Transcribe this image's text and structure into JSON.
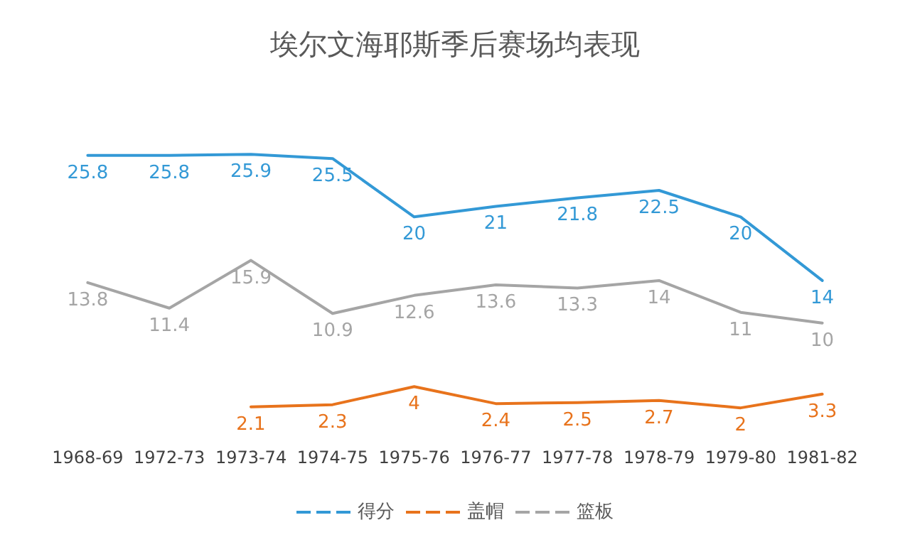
{
  "chart_data": {
    "type": "line",
    "title": "埃尔文海耶斯季后赛场均表现",
    "categories": [
      "1968-69",
      "1972-73",
      "1973-74",
      "1974-75",
      "1975-76",
      "1976-77",
      "1977-78",
      "1978-79",
      "1979-80",
      "1981-82"
    ],
    "series": [
      {
        "name": "得分",
        "color": "#3399d6",
        "values": [
          25.8,
          25.8,
          25.9,
          25.5,
          20,
          21,
          21.8,
          22.5,
          20,
          14
        ]
      },
      {
        "name": "盖帽",
        "color": "#e8731c",
        "values": [
          null,
          null,
          2.1,
          2.3,
          4,
          2.4,
          2.5,
          2.7,
          2,
          3.3
        ]
      },
      {
        "name": "篮板",
        "color": "#a5a5a5",
        "values": [
          13.8,
          11.4,
          15.9,
          10.9,
          12.6,
          13.6,
          13.3,
          14,
          11,
          10
        ]
      }
    ],
    "data_labels": true,
    "legend": "bottom",
    "grid": false,
    "marker": "none",
    "line_style": "solid",
    "tick_labels": "x"
  }
}
